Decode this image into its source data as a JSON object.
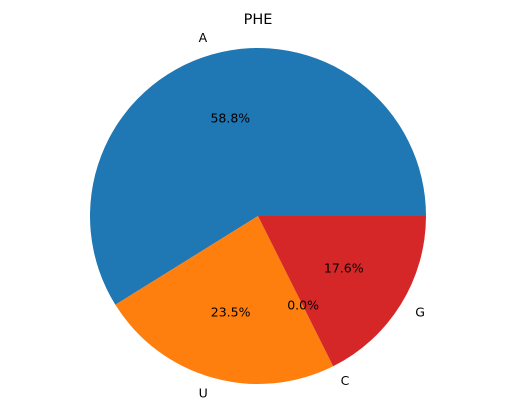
{
  "chart_data": {
    "type": "pie",
    "title": "PHE",
    "slices": [
      {
        "label": "A",
        "value": 58.8,
        "pct_label": "58.8%",
        "color": "#1f77b4"
      },
      {
        "label": "U",
        "value": 23.5,
        "pct_label": "23.5%",
        "color": "#ff7f0e"
      },
      {
        "label": "C",
        "value": 0.0,
        "pct_label": "0.0%",
        "color": "#2ca02c"
      },
      {
        "label": "G",
        "value": 17.6,
        "pct_label": "17.6%",
        "color": "#d62728"
      }
    ]
  }
}
